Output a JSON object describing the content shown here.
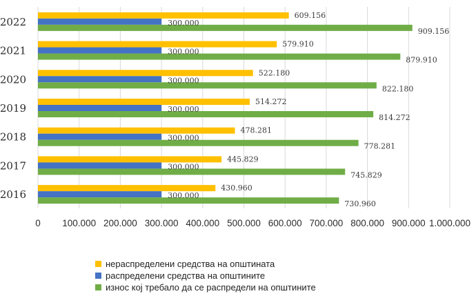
{
  "chart_data": {
    "type": "bar",
    "orientation": "horizontal",
    "categories": [
      "2022",
      "2021",
      "2020",
      "2019",
      "2018",
      "2017",
      "2016"
    ],
    "series": [
      {
        "name": "нераспределени средства на општината",
        "color": "#FFC000",
        "values": [
          609156,
          579910,
          522180,
          514272,
          478281,
          445829,
          430960
        ],
        "labels": [
          "609.156",
          "579.910",
          "522.180",
          "514.272",
          "478.281",
          "445.829",
          "430.960"
        ]
      },
      {
        "name": "распределени средства на општините",
        "color": "#4472C4",
        "values": [
          300000,
          300000,
          300000,
          300000,
          300000,
          300000,
          300000
        ],
        "labels": [
          "300.000",
          "300.000",
          "300.000",
          "300.000",
          "300.000",
          "300.000",
          "300.000"
        ]
      },
      {
        "name": "износ кој требало да се распредели на општините",
        "color": "#70AD47",
        "values": [
          909156,
          879910,
          822180,
          814272,
          778281,
          745829,
          730960
        ],
        "labels": [
          "909.156",
          "879.910",
          "822.180",
          "814.272",
          "778.281",
          "745.829",
          "730.960"
        ]
      }
    ],
    "xlim": [
      0,
      1000000
    ],
    "xticks": [
      0,
      100000,
      200000,
      300000,
      400000,
      500000,
      600000,
      700000,
      800000,
      900000,
      1000000
    ],
    "xtick_labels": [
      "0",
      "100.000",
      "200.000",
      "300.000",
      "400.000",
      "500.000",
      "600.000",
      "700.000",
      "800.000",
      "900.000",
      "1.000.000"
    ],
    "grid": true,
    "legend_position": "bottom"
  }
}
